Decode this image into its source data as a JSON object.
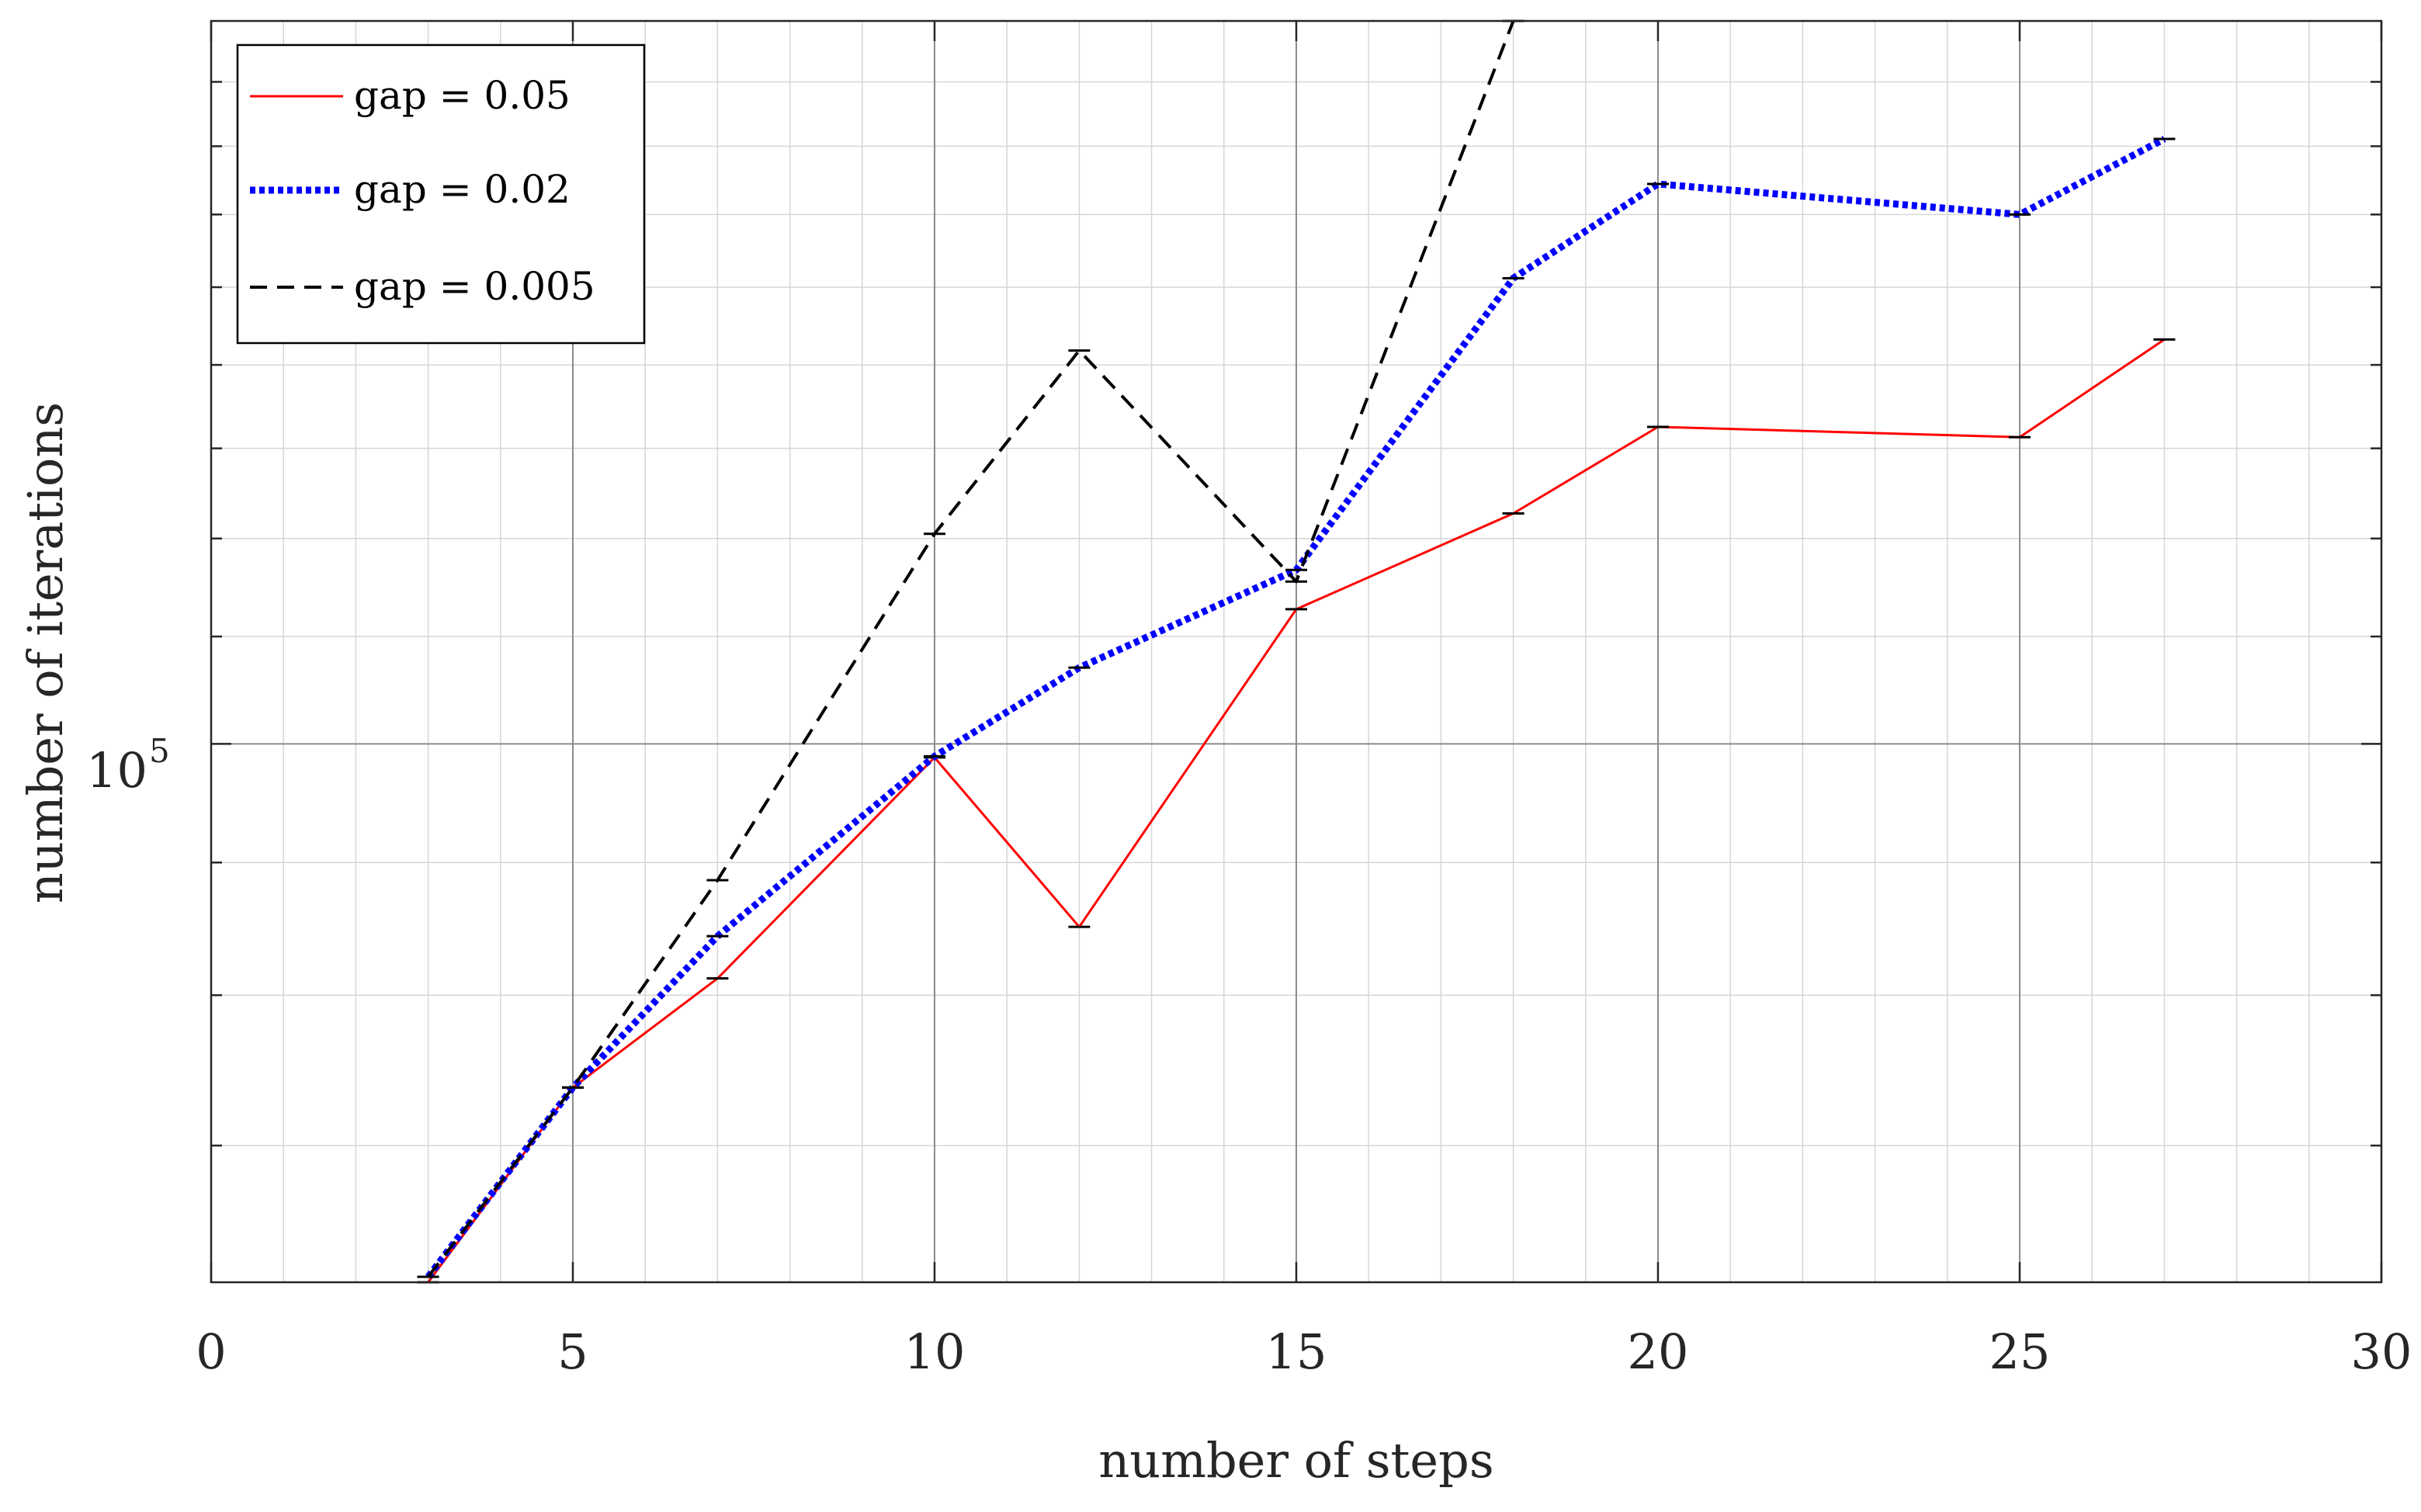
{
  "chart_data": {
    "type": "line",
    "title": "",
    "xlabel": "number of steps",
    "ylabel": "number of iterations",
    "xlim": [
      0,
      30
    ],
    "xticks": [
      0,
      5,
      10,
      15,
      20,
      25,
      30
    ],
    "xtick_labels": [
      "0",
      "5",
      "10",
      "15",
      "20",
      "25",
      "30"
    ],
    "yscale": "log",
    "ylim": [
      62000,
      190000
    ],
    "ytick_major": {
      "base": "10",
      "exponent": "5",
      "value": 100000
    },
    "ytick_minor": [
      70000,
      80000,
      90000,
      100000,
      110000,
      120000,
      130000,
      140000,
      150000,
      160000,
      170000,
      180000
    ],
    "grid": true,
    "legend_position": "top-left",
    "series": [
      {
        "name": "gap",
        "legend_label": "gap  =  0.05",
        "color": "#ff0000",
        "style": "solid",
        "x": [
          3,
          5,
          7,
          10,
          12,
          15,
          18,
          20,
          25,
          27
        ],
        "values": [
          62000,
          73700,
          81200,
          98800,
          85000,
          112700,
          122700,
          132500,
          131300,
          143200
        ]
      },
      {
        "name": "gap",
        "legend_label": "gap  =  0.02",
        "color": "#0000ff",
        "style": "dotted",
        "x": [
          3,
          5,
          7,
          10,
          12,
          15,
          18,
          20,
          25,
          27
        ],
        "values": [
          62300,
          73700,
          84300,
          98900,
          107000,
          116700,
          151200,
          164400,
          160000,
          171100
        ]
      },
      {
        "name": "gap",
        "legend_label": "gap  =  0.005",
        "color": "#000000",
        "style": "dashed",
        "x": [
          3,
          5,
          7,
          10,
          12,
          15,
          18
        ],
        "values": [
          62300,
          73700,
          88600,
          120500,
          141800,
          115500,
          190000
        ]
      }
    ]
  }
}
